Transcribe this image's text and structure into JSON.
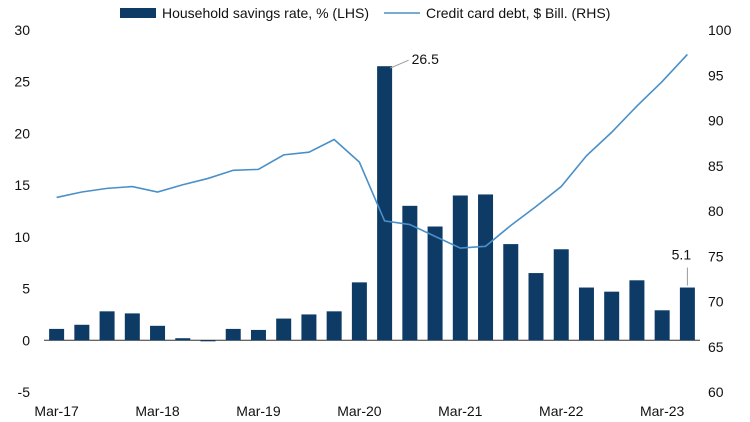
{
  "chart_data": {
    "type": "bar+line",
    "title": "",
    "xlabel": "",
    "legend": {
      "placement": "top",
      "entries": [
        {
          "label": "Household savings rate, % (LHS)",
          "kind": "bar",
          "color": "#0d3b66"
        },
        {
          "label": "Credit card debt, $ Bill. (RHS)",
          "kind": "line",
          "color": "#4a90c8"
        }
      ]
    },
    "x": [
      "Mar-17",
      "Jun-17",
      "Sep-17",
      "Dec-17",
      "Mar-18",
      "Jun-18",
      "Sep-18",
      "Dec-18",
      "Mar-19",
      "Jun-19",
      "Sep-19",
      "Dec-19",
      "Mar-20",
      "Jun-20",
      "Sep-20",
      "Dec-20",
      "Mar-21",
      "Jun-21",
      "Sep-21",
      "Dec-21",
      "Mar-22",
      "Jun-22",
      "Sep-22",
      "Dec-22",
      "Mar-23",
      "Jun-23"
    ],
    "x_tick_labels": [
      "Mar-17",
      "Mar-18",
      "Mar-19",
      "Mar-20",
      "Mar-21",
      "Mar-22",
      "Mar-23"
    ],
    "left_axis": {
      "ylim": [
        -5,
        30
      ],
      "ticks": [
        "-5",
        "0",
        "5",
        "10",
        "15",
        "20",
        "25",
        "30"
      ]
    },
    "right_axis": {
      "ylim": [
        60,
        100
      ],
      "ticks": [
        "60",
        "65",
        "70",
        "75",
        "80",
        "85",
        "90",
        "95",
        "100"
      ]
    },
    "series": [
      {
        "name": "Household savings rate, % (LHS)",
        "type": "bar",
        "axis": "left",
        "color": "#0d3b66",
        "values": [
          1.1,
          1.5,
          2.8,
          2.6,
          1.4,
          0.2,
          -0.1,
          1.1,
          1.0,
          2.1,
          2.5,
          2.8,
          5.6,
          26.5,
          13.0,
          11.0,
          14.0,
          14.1,
          9.3,
          6.5,
          8.8,
          5.1,
          4.7,
          5.8,
          2.9,
          5.1
        ]
      },
      {
        "name": "Credit card debt, $ Bill. (RHS)",
        "type": "line",
        "axis": "right",
        "color": "#4a90c8",
        "values": [
          81.5,
          82.1,
          82.5,
          82.7,
          82.1,
          82.9,
          83.6,
          84.5,
          84.6,
          86.2,
          86.5,
          87.9,
          85.4,
          78.9,
          78.5,
          77.2,
          75.9,
          76.1,
          78.4,
          80.5,
          82.7,
          86.1,
          88.7,
          91.6,
          94.3,
          97.3
        ]
      }
    ],
    "annotations": [
      {
        "label": "26.5",
        "series": 0,
        "index": 13
      },
      {
        "label": "5.1",
        "series": 0,
        "index": 25
      }
    ],
    "grid": false
  }
}
